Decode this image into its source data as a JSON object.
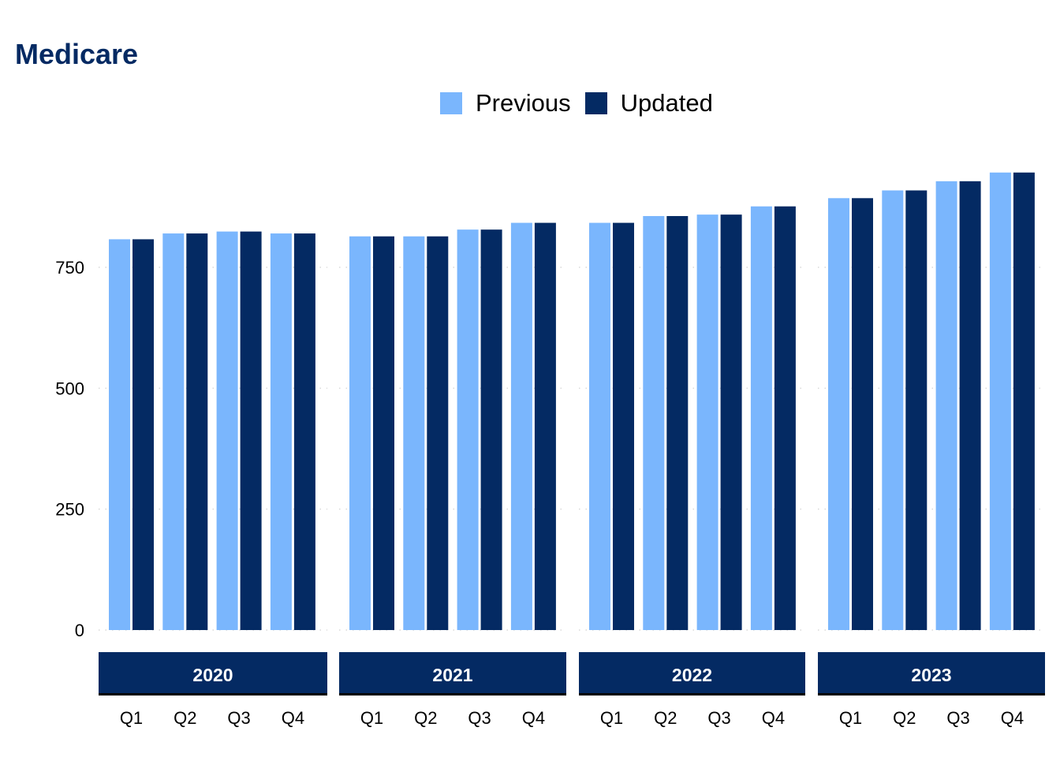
{
  "title": "Medicare",
  "colors": {
    "previous": "#7ab6fd",
    "updated": "#042a63",
    "strip_bg": "#042a63",
    "strip_text": "#ffffff",
    "grid": "#d9d9d9"
  },
  "legend": {
    "placement": "top-center",
    "items": [
      {
        "label": "Previous",
        "color": "#7ab6fd"
      },
      {
        "label": "Updated",
        "color": "#042a63"
      }
    ]
  },
  "chart_data": {
    "type": "bar",
    "title": "Medicare",
    "xlabel": "",
    "ylabel": "",
    "ylim": [
      0,
      950
    ],
    "y_ticks": [
      0,
      250,
      500,
      750
    ],
    "grid": "horizontal dotted",
    "legend_placement": "top-center",
    "facets": [
      "2020",
      "2021",
      "2022",
      "2023"
    ],
    "categories": [
      "Q1",
      "Q2",
      "Q3",
      "Q4"
    ],
    "series": [
      {
        "name": "Previous",
        "values": {
          "2020": [
            808,
            820,
            824,
            820
          ],
          "2021": [
            814,
            814,
            828,
            842
          ],
          "2022": [
            842,
            856,
            859,
            876
          ],
          "2023": [
            893,
            909,
            928,
            946
          ]
        }
      },
      {
        "name": "Updated",
        "values": {
          "2020": [
            808,
            820,
            824,
            820
          ],
          "2021": [
            814,
            814,
            828,
            842
          ],
          "2022": [
            842,
            856,
            859,
            876
          ],
          "2023": [
            893,
            909,
            928,
            946
          ]
        }
      }
    ]
  }
}
